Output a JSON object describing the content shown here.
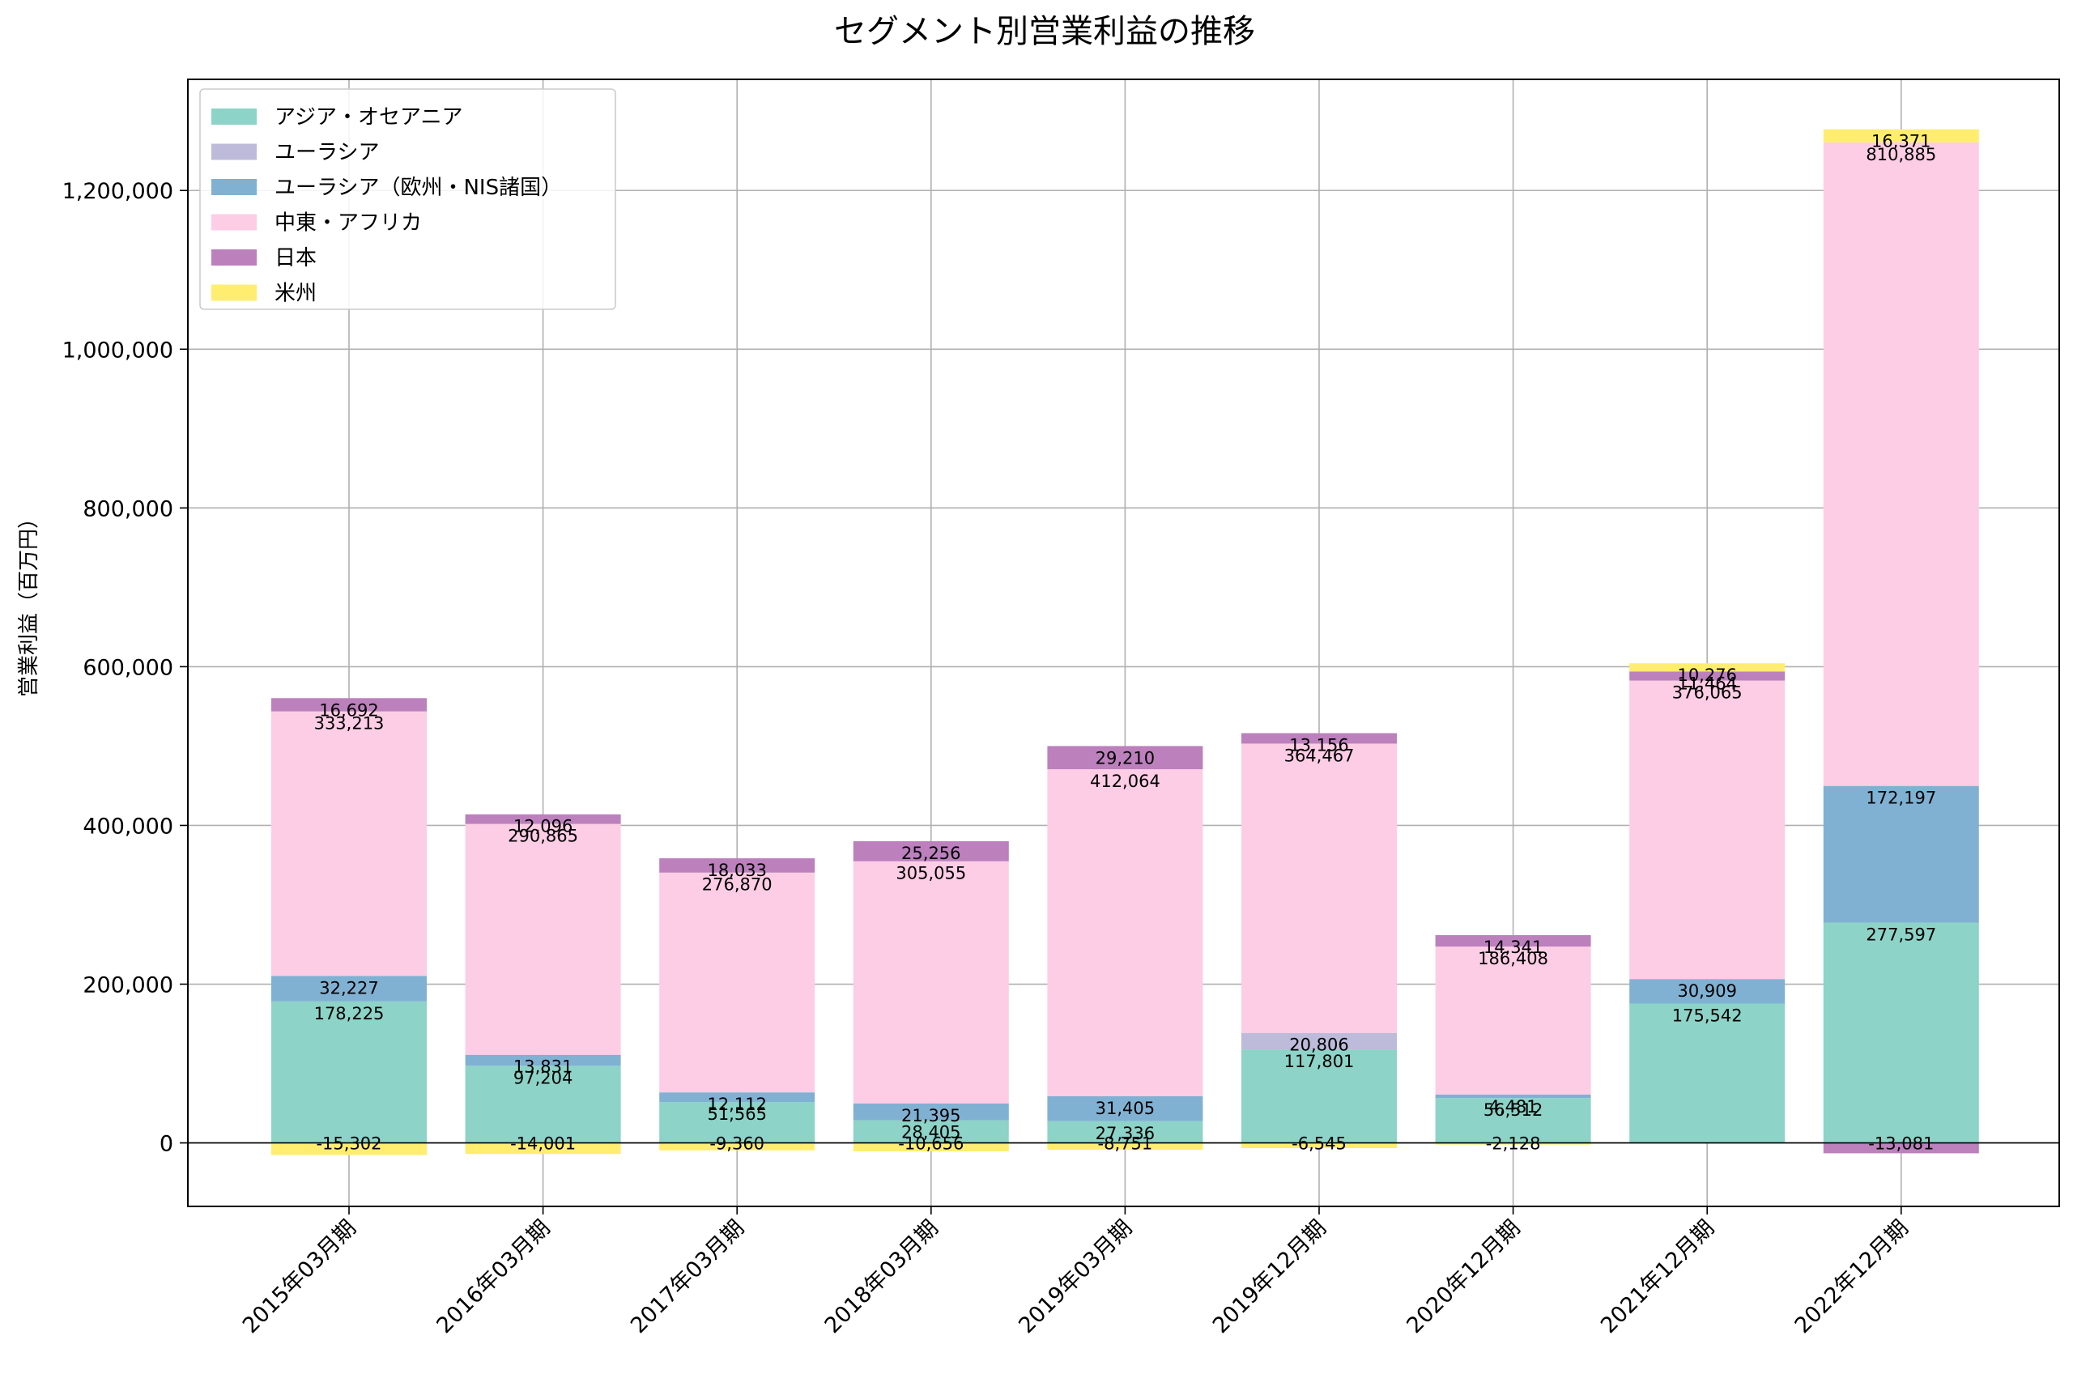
{
  "chart_data": {
    "type": "bar",
    "stacked": true,
    "title": "セグメント別営業利益の推移",
    "xlabel": "",
    "ylabel": "営業利益（百万円）",
    "ylim": [
      -80000,
      1340000
    ],
    "yticks": [
      0,
      200000,
      400000,
      600000,
      800000,
      1000000,
      1200000
    ],
    "ytick_labels": [
      "0",
      "200,000",
      "400,000",
      "600,000",
      "800,000",
      "1,000,000",
      "1,200,000"
    ],
    "grid": true,
    "legend_position": "top-left",
    "categories": [
      "2015年03月期",
      "2016年03月期",
      "2017年03月期",
      "2018年03月期",
      "2019年03月期",
      "2019年12月期",
      "2020年12月期",
      "2021年12月期",
      "2022年12月期"
    ],
    "series": [
      {
        "name": "アジア・オセアニア",
        "color": "#8dd3c7",
        "values": [
          178225,
          97204,
          51565,
          28405,
          27336,
          117801,
          56512,
          175542,
          277597
        ]
      },
      {
        "name": "ユーラシア",
        "color": "#bebada",
        "values": [
          null,
          null,
          null,
          null,
          null,
          20806,
          null,
          null,
          null
        ]
      },
      {
        "name": "ユーラシア（欧州・NIS諸国）",
        "color": "#80b1d3",
        "values": [
          32227,
          13831,
          12112,
          21395,
          31405,
          null,
          4481,
          30909,
          172197
        ]
      },
      {
        "name": "中東・アフリカ",
        "color": "#fccde5",
        "values": [
          333213,
          290865,
          276870,
          305055,
          412064,
          364467,
          186408,
          376065,
          810885
        ]
      },
      {
        "name": "日本",
        "color": "#bc80bd",
        "values": [
          16692,
          12096,
          18033,
          25256,
          29210,
          13156,
          14341,
          11464,
          -13081
        ]
      },
      {
        "name": "米州",
        "color": "#ffed6f",
        "values": [
          -15302,
          -14001,
          -9360,
          -10656,
          -8751,
          -6545,
          -2128,
          10276,
          16371
        ]
      }
    ]
  }
}
